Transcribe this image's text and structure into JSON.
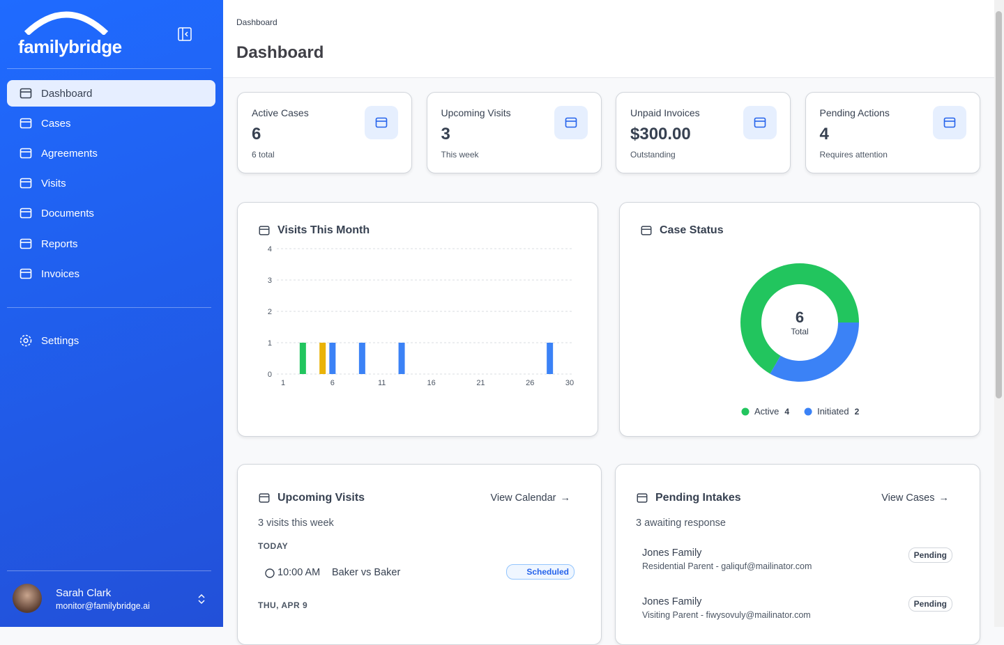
{
  "sidebar": {
    "brand": "familybridge",
    "nav": [
      "Dashboard",
      "Cases",
      "Agreements",
      "Visits",
      "Documents",
      "Reports",
      "Invoices"
    ],
    "settings": "Settings",
    "user": {
      "name": "Sarah Clark",
      "email": "monitor@familybridge.ai"
    }
  },
  "header": {
    "breadcrumb": "Dashboard",
    "title": "Dashboard"
  },
  "stats": [
    {
      "label": "Active Cases",
      "value": "6",
      "note": "6 total"
    },
    {
      "label": "Upcoming Visits",
      "value": "3",
      "note": "This week"
    },
    {
      "label": "Unpaid Invoices",
      "value": "$300.00",
      "note": "Outstanding"
    },
    {
      "label": "Pending Actions",
      "value": "4",
      "note": "Requires attention"
    }
  ],
  "chart_data": [
    {
      "type": "bar",
      "title": "Visits This Month",
      "x": [
        3,
        5,
        6,
        9,
        13,
        28
      ],
      "values": [
        1,
        1,
        1,
        1,
        1,
        1
      ],
      "colors": [
        "#22c55e",
        "#eab308",
        "#3b82f6",
        "#3b82f6",
        "#3b82f6",
        "#3b82f6"
      ],
      "xlim": [
        1,
        30
      ],
      "xticks": [
        1,
        6,
        11,
        16,
        21,
        26,
        30
      ],
      "ylim": [
        0,
        4
      ],
      "yticks": [
        0,
        1,
        2,
        3,
        4
      ],
      "grid": true
    },
    {
      "type": "pie",
      "title": "Case Status",
      "categories": [
        "Active",
        "Initiated"
      ],
      "values": [
        4,
        2
      ],
      "colors": [
        "#22c55e",
        "#3b82f6"
      ],
      "center_value": 6,
      "center_label": "Total",
      "donut": true
    }
  ],
  "upcoming": {
    "title": "Upcoming Visits",
    "link": "View Calendar",
    "subtitle": "3 visits this week",
    "groups": [
      {
        "date": "TODAY",
        "items": [
          {
            "time": "10:00 AM",
            "name": "Baker vs Baker",
            "status": "Scheduled"
          }
        ]
      },
      {
        "date": "THU, APR 9",
        "items": []
      }
    ]
  },
  "intakes": {
    "title": "Pending Intakes",
    "link": "View Cases",
    "subtitle": "3 awaiting response",
    "items": [
      {
        "name": "Jones Family",
        "detail": "Residential Parent - galiquf@mailinator.com",
        "status": "Pending"
      },
      {
        "name": "Jones Family",
        "detail": "Visiting Parent - fiwysovuly@mailinator.com",
        "status": "Pending"
      }
    ]
  }
}
